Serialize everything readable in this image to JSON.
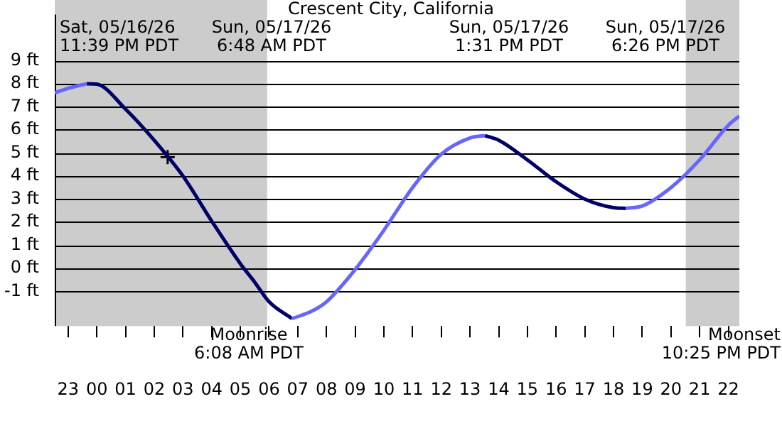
{
  "chart_data": {
    "type": "line",
    "title": "Crescent City, California",
    "x": [
      "--05-16T22:32",
      "--05-16T23:00",
      "--05-16T23:39",
      "--05-17T00:00",
      "--05-17T01:00",
      "--05-17T02:00",
      "--05-17T03:00",
      "--05-17T04:00",
      "--05-17T05:00",
      "--05-17T05:30",
      "--05-17T06:00",
      "--05-17T06:48",
      "--05-17T07:30",
      "--05-17T08:00",
      "--05-17T09:00",
      "--05-17T10:00",
      "--05-17T11:00",
      "--05-17T12:00",
      "--05-17T13:00",
      "--05-17T13:31",
      "--05-17T14:00",
      "--05-17T15:00",
      "--05-17T16:00",
      "--05-17T17:00",
      "--05-17T18:00",
      "--05-17T18:26",
      "--05-17T19:00",
      "--05-17T20:00",
      "--05-17T21:00",
      "--05-17T22:00",
      "--05-17T22:23"
    ],
    "series": [
      {
        "color": "#6666ff",
        "values": [
          7.6,
          7.8,
          8.0,
          null,
          null,
          null,
          null,
          null,
          null,
          null,
          null,
          -2.18,
          -1.85,
          -1.45,
          -0.05,
          1.65,
          3.5,
          4.95,
          5.65,
          5.75,
          null,
          null,
          null,
          null,
          null,
          2.6,
          2.7,
          3.5,
          4.7,
          6.2,
          6.6
        ]
      },
      {
        "color": "#000066",
        "values": [
          null,
          null,
          8.0,
          7.98,
          6.9,
          5.55,
          4.0,
          2.05,
          0.2,
          -0.6,
          -1.45,
          -2.18,
          null,
          null,
          null,
          null,
          null,
          null,
          null,
          5.75,
          5.55,
          4.7,
          3.75,
          3.0,
          2.63,
          2.6,
          null,
          null,
          null,
          null,
          null
        ]
      },
      {
        "type": "scatter",
        "color": "#000000",
        "marker": "cross",
        "x": [
          "--05-17T02:28"
        ],
        "values": [
          4.82
        ]
      }
    ],
    "xlim": [
      "--05-16T22:32",
      "--05-17T22:23"
    ],
    "xticks": [
      {
        "value": "--05-16T23:00",
        "label": "23"
      },
      {
        "value": "--05-17T00:00",
        "label": "00"
      },
      {
        "value": "--05-17T01:00",
        "label": "01"
      },
      {
        "value": "--05-17T02:00",
        "label": "02"
      },
      {
        "value": "--05-17T03:00",
        "label": "03"
      },
      {
        "value": "--05-17T04:00",
        "label": "04"
      },
      {
        "value": "--05-17T05:00",
        "label": "05"
      },
      {
        "value": "--05-17T06:00",
        "label": "06"
      },
      {
        "value": "--05-17T07:00",
        "label": "07"
      },
      {
        "value": "--05-17T08:00",
        "label": "08"
      },
      {
        "value": "--05-17T09:00",
        "label": "09"
      },
      {
        "value": "--05-17T10:00",
        "label": "10"
      },
      {
        "value": "--05-17T11:00",
        "label": "11"
      },
      {
        "value": "--05-17T12:00",
        "label": "12"
      },
      {
        "value": "--05-17T13:00",
        "label": "13"
      },
      {
        "value": "--05-17T14:00",
        "label": "14"
      },
      {
        "value": "--05-17T15:00",
        "label": "15"
      },
      {
        "value": "--05-17T16:00",
        "label": "16"
      },
      {
        "value": "--05-17T17:00",
        "label": "17"
      },
      {
        "value": "--05-17T18:00",
        "label": "18"
      },
      {
        "value": "--05-17T19:00",
        "label": "19"
      },
      {
        "value": "--05-17T20:00",
        "label": "20"
      },
      {
        "value": "--05-17T21:00",
        "label": "21"
      },
      {
        "value": "--05-17T22:00",
        "label": "22"
      }
    ],
    "ylim": [
      -2.5,
      11
    ],
    "yticks": [
      {
        "value": -1,
        "label": "-1 ft"
      },
      {
        "value": 0,
        "label": "0 ft"
      },
      {
        "value": 1,
        "label": "1 ft"
      },
      {
        "value": 2,
        "label": "2 ft"
      },
      {
        "value": 3,
        "label": "3 ft"
      },
      {
        "value": 4,
        "label": "4 ft"
      },
      {
        "value": 5,
        "label": "5 ft"
      },
      {
        "value": 6,
        "label": "6 ft"
      },
      {
        "value": 7,
        "label": "7 ft"
      },
      {
        "value": 8,
        "label": "8 ft"
      },
      {
        "value": 9,
        "label": "9 ft"
      }
    ],
    "grid": "y",
    "legend": false,
    "line_style": "solid",
    "marker": "none",
    "bands": [
      {
        "axis": "x",
        "from": "--05-16T22:32",
        "to": "--05-17T05:56",
        "color": "#cccccc"
      },
      {
        "axis": "x",
        "from": "--05-17T20:31",
        "to": "--05-17T22:23",
        "color": "#cccccc"
      }
    ],
    "annotations": [
      "Sat, 05/16/26\n11:39 PM PDT",
      "Sun, 05/17/26\n6:48 AM PDT",
      "Sun, 05/17/26\n1:31 PM PDT",
      "Sun, 05/17/26\n6:26 PM PDT",
      "Moonrise\n6:08 AM PDT",
      "Moonset\n10:25 PM PDT"
    ]
  }
}
